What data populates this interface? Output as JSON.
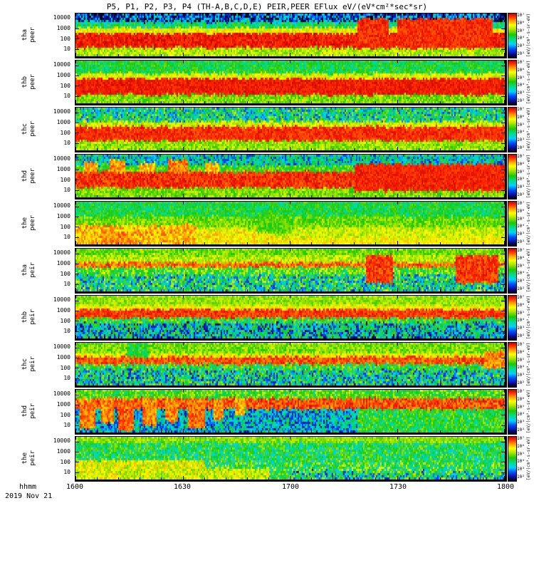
{
  "title": "P5, P1, P2, P3, P4 (TH-A,B,C,D,E) PEIR,PEER EFlux eV/(eV*cm²*sec*sr)",
  "x_axis": {
    "label": "hhmm",
    "date": "2019 Nov 21",
    "ticks": [
      {
        "label": "1600",
        "pos": 0
      },
      {
        "label": "1630",
        "pos": 0.25
      },
      {
        "label": "1700",
        "pos": 0.5
      },
      {
        "label": "1730",
        "pos": 0.75
      },
      {
        "label": "1800",
        "pos": 1
      }
    ]
  },
  "y_axis": {
    "scale": "log",
    "ticks": [
      {
        "label": "10000",
        "pos": 0.12
      },
      {
        "label": "1000",
        "pos": 0.35
      },
      {
        "label": "100",
        "pos": 0.59
      },
      {
        "label": "10",
        "pos": 0.83
      }
    ]
  },
  "colorbar": {
    "unit": "[eV/(cm²-s-sr-eV)]",
    "ticks": [
      "10⁷",
      "10⁶",
      "10⁵",
      "10⁴",
      "10³",
      "10²"
    ]
  },
  "chart_data": {
    "type": "heatmap",
    "subtype": "time-energy spectrogram stack",
    "title": "P5, P1, P2, P3, P4 (TH-A,B,C,D,E) PEIR,PEER EFlux eV/(eV*cm²*sec*sr)",
    "x_range_hhmm": [
      1600,
      1800
    ],
    "x_tick_values": [
      1600,
      1630,
      1700,
      1730,
      1800
    ],
    "date": "2019 Nov 21",
    "y_range_ev": [
      5,
      30000
    ],
    "y_scale": "log",
    "y_tick_values": [
      10000,
      1000,
      100,
      10
    ],
    "value_unit": "eV/(cm2-s-sr-eV)",
    "colormap": "rainbow (blue=low, red=high)",
    "legend_position": "per-panel colorbar, right side",
    "panels": [
      {
        "id": "tha-peer",
        "label_lines": [
          "tha",
          "peer"
        ],
        "seed": 11,
        "bands": [
          {
            "y0": 0,
            "y1": 0.2,
            "v": 0.18,
            "n": 0.22
          },
          {
            "y0": 0.2,
            "y1": 0.34,
            "v": 0.45,
            "n": 0.15
          },
          {
            "y0": 0.34,
            "y1": 0.46,
            "v": 0.72,
            "n": 0.1
          },
          {
            "y0": 0.46,
            "y1": 0.8,
            "v": 0.95,
            "n": 0.05
          },
          {
            "y0": 0.8,
            "y1": 1.01,
            "v": 0.65,
            "n": 0.1
          }
        ],
        "events": [
          {
            "x0": 0.655,
            "x1": 0.73,
            "y0": 0.12,
            "y1": 0.82,
            "v": 0.93,
            "n": 0.05
          },
          {
            "x0": 0.75,
            "x1": 0.97,
            "y0": 0.12,
            "y1": 0.82,
            "v": 0.93,
            "n": 0.05
          }
        ]
      },
      {
        "id": "thb-peer",
        "label_lines": [
          "thb",
          "peer"
        ],
        "seed": 22,
        "bands": [
          {
            "y0": 0,
            "y1": 0.3,
            "v": 0.48,
            "n": 0.12
          },
          {
            "y0": 0.3,
            "y1": 0.42,
            "v": 0.7,
            "n": 0.08
          },
          {
            "y0": 0.42,
            "y1": 0.8,
            "v": 0.95,
            "n": 0.04
          },
          {
            "y0": 0.8,
            "y1": 1.01,
            "v": 0.6,
            "n": 0.1
          }
        ],
        "events": []
      },
      {
        "id": "thc-peer",
        "label_lines": [
          "thc",
          "peer"
        ],
        "seed": 33,
        "bands": [
          {
            "y0": 0,
            "y1": 0.33,
            "v": 0.42,
            "n": 0.25
          },
          {
            "y0": 0.33,
            "y1": 0.45,
            "v": 0.68,
            "n": 0.1
          },
          {
            "y0": 0.45,
            "y1": 0.78,
            "v": 0.93,
            "n": 0.05
          },
          {
            "y0": 0.78,
            "y1": 1.01,
            "v": 0.62,
            "n": 0.1
          }
        ],
        "events": []
      },
      {
        "id": "thd-peer",
        "label_lines": [
          "thd",
          "peer"
        ],
        "seed": 44,
        "bands": [
          {
            "y0": 0,
            "y1": 0.25,
            "v": 0.35,
            "n": 0.22
          },
          {
            "y0": 0.25,
            "y1": 0.4,
            "v": 0.55,
            "n": 0.12
          },
          {
            "y0": 0.4,
            "y1": 0.78,
            "v": 0.93,
            "n": 0.06
          },
          {
            "y0": 0.78,
            "y1": 1.01,
            "v": 0.6,
            "n": 0.1
          }
        ],
        "events": [
          {
            "x0": 0.02,
            "x1": 0.05,
            "y0": 0.18,
            "y1": 0.42,
            "v": 0.82,
            "n": 0.08
          },
          {
            "x0": 0.08,
            "x1": 0.115,
            "y0": 0.14,
            "y1": 0.42,
            "v": 0.84,
            "n": 0.08
          },
          {
            "x0": 0.15,
            "x1": 0.185,
            "y0": 0.2,
            "y1": 0.42,
            "v": 0.8,
            "n": 0.08
          },
          {
            "x0": 0.215,
            "x1": 0.26,
            "y0": 0.12,
            "y1": 0.42,
            "v": 0.86,
            "n": 0.08
          },
          {
            "x0": 0.3,
            "x1": 0.335,
            "y0": 0.2,
            "y1": 0.42,
            "v": 0.8,
            "n": 0.08
          },
          {
            "x0": 0.65,
            "x1": 1.01,
            "y0": 0.22,
            "y1": 0.85,
            "v": 0.94,
            "n": 0.04
          }
        ]
      },
      {
        "id": "the-peer",
        "label_lines": [
          "the",
          "peer"
        ],
        "seed": 55,
        "bands": [
          {
            "y0": 0,
            "y1": 0.35,
            "v": 0.48,
            "n": 0.12
          },
          {
            "y0": 0.35,
            "y1": 0.6,
            "v": 0.58,
            "n": 0.1
          },
          {
            "y0": 0.6,
            "y1": 0.85,
            "v": 0.68,
            "n": 0.1
          },
          {
            "y0": 0.85,
            "y1": 1.01,
            "v": 0.74,
            "n": 0.08
          }
        ],
        "events": [
          {
            "x0": 0,
            "x1": 0.28,
            "y0": 0.55,
            "y1": 1.01,
            "v": 0.8,
            "n": 0.1
          },
          {
            "x0": 0.06,
            "x1": 0.13,
            "y0": 0.72,
            "y1": 1.01,
            "v": 0.85,
            "n": 0.08
          },
          {
            "x0": 0.28,
            "x1": 0.45,
            "y0": 0.68,
            "y1": 1.01,
            "v": 0.74,
            "n": 0.1
          },
          {
            "x0": 0.42,
            "x1": 0.5,
            "y0": 0.3,
            "y1": 0.72,
            "v": 0.55,
            "n": 0.08
          }
        ]
      },
      {
        "id": "tha-peir",
        "label_lines": [
          "tha",
          "peir"
        ],
        "seed": 66,
        "bands": [
          {
            "y0": 0,
            "y1": 0.15,
            "v": 0.58,
            "n": 0.1
          },
          {
            "y0": 0.15,
            "y1": 0.32,
            "v": 0.66,
            "n": 0.1
          },
          {
            "y0": 0.32,
            "y1": 0.44,
            "v": 0.88,
            "n": 0.08
          },
          {
            "y0": 0.44,
            "y1": 0.6,
            "v": 0.55,
            "n": 0.18
          },
          {
            "y0": 0.6,
            "y1": 1.01,
            "v": 0.42,
            "n": 0.28
          }
        ],
        "events": [
          {
            "x0": 0.675,
            "x1": 0.74,
            "y0": 0.15,
            "y1": 0.8,
            "v": 0.92,
            "n": 0.06
          },
          {
            "x0": 0.885,
            "x1": 0.985,
            "y0": 0.15,
            "y1": 0.8,
            "v": 0.92,
            "n": 0.06
          }
        ]
      },
      {
        "id": "thb-peir",
        "label_lines": [
          "thb",
          "peir"
        ],
        "seed": 77,
        "bands": [
          {
            "y0": 0,
            "y1": 0.22,
            "v": 0.62,
            "n": 0.08
          },
          {
            "y0": 0.22,
            "y1": 0.32,
            "v": 0.72,
            "n": 0.08
          },
          {
            "y0": 0.32,
            "y1": 0.52,
            "v": 0.92,
            "n": 0.06
          },
          {
            "y0": 0.52,
            "y1": 0.64,
            "v": 0.5,
            "n": 0.18
          },
          {
            "y0": 0.64,
            "y1": 1.01,
            "v": 0.32,
            "n": 0.28
          }
        ],
        "events": []
      },
      {
        "id": "thc-peir",
        "label_lines": [
          "thc",
          "peir"
        ],
        "seed": 88,
        "bands": [
          {
            "y0": 0,
            "y1": 0.25,
            "v": 0.6,
            "n": 0.1
          },
          {
            "y0": 0.25,
            "y1": 0.33,
            "v": 0.72,
            "n": 0.08
          },
          {
            "y0": 0.33,
            "y1": 0.5,
            "v": 0.9,
            "n": 0.07
          },
          {
            "y0": 0.5,
            "y1": 0.62,
            "v": 0.5,
            "n": 0.18
          },
          {
            "y0": 0.62,
            "y1": 1.01,
            "v": 0.38,
            "n": 0.28
          }
        ],
        "events": [
          {
            "x0": 0.12,
            "x1": 0.17,
            "y0": 0,
            "y1": 0.35,
            "v": 0.5,
            "n": 0.12
          },
          {
            "x0": 0.95,
            "x1": 1.01,
            "y0": 0.2,
            "y1": 0.6,
            "v": 0.85,
            "n": 0.08
          }
        ]
      },
      {
        "id": "thd-peir",
        "label_lines": [
          "thd",
          "peir"
        ],
        "seed": 99,
        "bands": [
          {
            "y0": 0,
            "y1": 0.2,
            "v": 0.55,
            "n": 0.15
          },
          {
            "y0": 0.2,
            "y1": 0.45,
            "v": 0.9,
            "n": 0.08
          },
          {
            "y0": 0.45,
            "y1": 1.01,
            "v": 0.3,
            "n": 0.22
          }
        ],
        "events": [
          {
            "x0": 0.01,
            "x1": 0.045,
            "y0": 0.2,
            "y1": 0.9,
            "v": 0.86,
            "n": 0.08
          },
          {
            "x0": 0.06,
            "x1": 0.09,
            "y0": 0.2,
            "y1": 0.8,
            "v": 0.85,
            "n": 0.08
          },
          {
            "x0": 0.1,
            "x1": 0.135,
            "y0": 0.2,
            "y1": 0.95,
            "v": 0.88,
            "n": 0.08
          },
          {
            "x0": 0.155,
            "x1": 0.19,
            "y0": 0.2,
            "y1": 0.85,
            "v": 0.85,
            "n": 0.08
          },
          {
            "x0": 0.21,
            "x1": 0.24,
            "y0": 0.2,
            "y1": 0.75,
            "v": 0.85,
            "n": 0.08
          },
          {
            "x0": 0.26,
            "x1": 0.3,
            "y0": 0.2,
            "y1": 0.9,
            "v": 0.87,
            "n": 0.08
          },
          {
            "x0": 0.32,
            "x1": 0.345,
            "y0": 0.2,
            "y1": 0.7,
            "v": 0.85,
            "n": 0.08
          },
          {
            "x0": 0.37,
            "x1": 0.395,
            "y0": 0.2,
            "y1": 0.6,
            "v": 0.82,
            "n": 0.08
          },
          {
            "x0": 0.655,
            "x1": 1.01,
            "y0": 0.45,
            "y1": 1.01,
            "v": 0.5,
            "n": 0.15
          }
        ]
      },
      {
        "id": "the-peir",
        "label_lines": [
          "the",
          "peir"
        ],
        "seed": 110,
        "bands": [
          {
            "y0": 0,
            "y1": 0.13,
            "v": 0.62,
            "n": 0.08
          },
          {
            "y0": 0.13,
            "y1": 0.6,
            "v": 0.47,
            "n": 0.18
          },
          {
            "y0": 0.6,
            "y1": 1.01,
            "v": 0.5,
            "n": 0.22
          }
        ],
        "events": [
          {
            "x0": 0,
            "x1": 0.3,
            "y0": 0.55,
            "y1": 1.01,
            "v": 0.7,
            "n": 0.12
          },
          {
            "x0": 0.1,
            "x1": 0.45,
            "y0": 0.75,
            "y1": 1.01,
            "v": 0.68,
            "n": 0.12
          },
          {
            "x0": 0.5,
            "x1": 1.01,
            "y0": 0.8,
            "y1": 1.01,
            "v": 0.4,
            "n": 0.28
          }
        ]
      }
    ]
  }
}
